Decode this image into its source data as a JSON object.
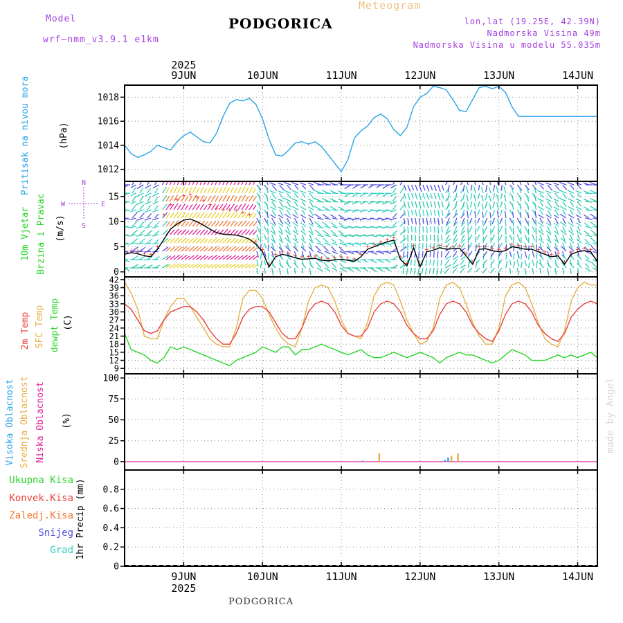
{
  "header": {
    "model_label": "Model",
    "model_name": "wrf–nmm_v3.9.1 e1km",
    "station": "PODGORICA",
    "product": "Meteogram",
    "coords": "lon,lat (19.25E, 42.39N)",
    "elevation": "Nadmorska Visina 49m",
    "model_elevation": "Nadmorska Visina u modelu 55.035m"
  },
  "footer": {
    "station": "PODGORICA",
    "credit": "made by Angel"
  },
  "time_axis": {
    "year": "2025",
    "days": [
      "9JUN",
      "10JUN",
      "11JUN",
      "12JUN",
      "13JUN",
      "14JUN"
    ],
    "day_positions_h": [
      18,
      42,
      66,
      90,
      114,
      138
    ],
    "range_h": [
      0,
      144
    ]
  },
  "colors": {
    "pressure": "#29a3e8",
    "wind_speed": "#000000",
    "t2m": "#e8423c",
    "sfc": "#e8b048",
    "dewpoint": "#2ad42a",
    "cloud_high": "#29a3e8",
    "cloud_mid": "#e8b048",
    "cloud_low": "#e0209a",
    "precip_total": "#2ad42a",
    "precip_conv": "#e8423c",
    "precip_frozen": "#f07830",
    "precip_snow": "#5050e0",
    "precip_grad": "#30d0c0",
    "wind_fast": "#e0209a",
    "wind_mid": "#e8d020",
    "wind_slow": "#30d0c0"
  },
  "chart_data": [
    {
      "type": "line",
      "panel": "pressure",
      "ylabel_main": "Pritisak na nivou mora",
      "ylabel_unit": "(hPa)",
      "ylim": [
        1011,
        1019
      ],
      "yticks": [
        1012,
        1014,
        1016,
        1018
      ],
      "grid": true,
      "series": [
        {
          "name": "Pritisak na nivou mora",
          "x": [
            0,
            2,
            4,
            6,
            8,
            10,
            12,
            14,
            16,
            18,
            20,
            22,
            24,
            26,
            28,
            30,
            32,
            34,
            36,
            38,
            40,
            42,
            44,
            46,
            48,
            50,
            52,
            54,
            56,
            58,
            60,
            62,
            64,
            66,
            68,
            70,
            72,
            74,
            76,
            78,
            80,
            82,
            84,
            86,
            88,
            90,
            92,
            94,
            96,
            98,
            100,
            102,
            104,
            106,
            108,
            110,
            112,
            114,
            116,
            118,
            120,
            122,
            124,
            126,
            128,
            130,
            132,
            134,
            136,
            138,
            140,
            142,
            144
          ],
          "values": [
            1014.0,
            1013.3,
            1013.0,
            1013.2,
            1013.5,
            1014.0,
            1013.8,
            1013.6,
            1014.3,
            1014.8,
            1015.1,
            1014.7,
            1014.3,
            1014.2,
            1015.0,
            1016.4,
            1017.5,
            1017.8,
            1017.7,
            1017.9,
            1017.4,
            1016.2,
            1014.5,
            1013.2,
            1013.1,
            1013.6,
            1014.2,
            1014.3,
            1014.1,
            1014.3,
            1013.9,
            1013.2,
            1012.5,
            1011.8,
            1012.8,
            1014.6,
            1015.2,
            1015.6,
            1016.3,
            1016.6,
            1016.2,
            1015.3,
            1014.8,
            1015.5,
            1017.2,
            1018.0,
            1018.3,
            1018.9,
            1018.8,
            1018.6,
            1017.8,
            1016.9,
            1016.8,
            1017.8,
            1018.8,
            1018.9,
            1018.7,
            1018.9,
            1018.4,
            1017.2,
            1016.4,
            1016.4,
            1016.4,
            1016.4,
            1016.4,
            1016.4,
            1016.4,
            1016.4,
            1016.4,
            1016.4,
            1016.4,
            1016.4,
            1016.4
          ]
        }
      ]
    },
    {
      "type": "line",
      "panel": "wind",
      "ylabel_main": "10m Vjetar",
      "ylabel_sub": "Brzina i Pravac",
      "ylabel_unit": "(m/s)",
      "compass_labels": [
        "N",
        "E",
        "W",
        "S"
      ],
      "ylim": [
        -1,
        18
      ],
      "yticks": [
        0,
        5,
        10,
        15
      ],
      "grid": true,
      "series": [
        {
          "name": "10m Vjetar",
          "x": [
            0,
            2,
            4,
            6,
            8,
            10,
            12,
            14,
            16,
            18,
            20,
            22,
            24,
            26,
            28,
            30,
            32,
            34,
            36,
            38,
            40,
            42,
            44,
            46,
            48,
            50,
            52,
            54,
            56,
            58,
            60,
            62,
            64,
            66,
            68,
            70,
            72,
            74,
            76,
            78,
            80,
            82,
            84,
            86,
            88,
            90,
            92,
            94,
            96,
            98,
            100,
            102,
            104,
            106,
            108,
            110,
            112,
            114,
            116,
            118,
            120,
            122,
            124,
            126,
            128,
            130,
            132,
            134,
            136,
            138,
            140,
            142,
            144
          ],
          "values": [
            3.5,
            3.8,
            3.6,
            3.2,
            3.0,
            4.5,
            6.5,
            8.5,
            9.5,
            10.3,
            10.5,
            10.0,
            9.3,
            8.5,
            7.8,
            7.5,
            7.4,
            7.3,
            7.0,
            6.5,
            5.5,
            4.0,
            1.0,
            3.0,
            3.5,
            3.2,
            2.8,
            2.5,
            2.6,
            2.7,
            2.3,
            2.2,
            2.4,
            2.5,
            2.3,
            2.1,
            3.0,
            4.5,
            5.0,
            5.5,
            6.0,
            6.3,
            2.5,
            1.2,
            4.8,
            1.0,
            4.0,
            4.3,
            4.8,
            4.5,
            4.6,
            4.7,
            3.2,
            1.5,
            4.5,
            4.6,
            4.2,
            4.0,
            4.2,
            5.0,
            4.8,
            4.5,
            4.5,
            4.0,
            3.5,
            3.0,
            3.2,
            1.5,
            3.5,
            4.0,
            4.2,
            4.0,
            2.0
          ]
        }
      ]
    },
    {
      "type": "line",
      "panel": "temperature",
      "ylabel_t2m": "2m Temp",
      "ylabel_sfc": "SFC Temp",
      "ylabel_dew": "dewpt Temp",
      "ylabel_unit": "(C)",
      "ylim": [
        7,
        43
      ],
      "yticks": [
        9,
        12,
        15,
        18,
        21,
        24,
        27,
        30,
        33,
        36,
        39,
        42
      ],
      "grid": true,
      "series": [
        {
          "name": "2m Temp",
          "x": [
            0,
            2,
            4,
            6,
            8,
            10,
            12,
            14,
            16,
            18,
            20,
            22,
            24,
            26,
            28,
            30,
            32,
            34,
            36,
            38,
            40,
            42,
            44,
            46,
            48,
            50,
            52,
            54,
            56,
            58,
            60,
            62,
            64,
            66,
            68,
            70,
            72,
            74,
            76,
            78,
            80,
            82,
            84,
            86,
            88,
            90,
            92,
            94,
            96,
            98,
            100,
            102,
            104,
            106,
            108,
            110,
            112,
            114,
            116,
            118,
            120,
            122,
            124,
            126,
            128,
            130,
            132,
            134,
            136,
            138,
            140,
            142,
            144
          ],
          "values": [
            33,
            31,
            27,
            23,
            22,
            23,
            27,
            30,
            31,
            32,
            32,
            30,
            27,
            23,
            20,
            18,
            18,
            22,
            28,
            31,
            32,
            32,
            30,
            26,
            22,
            20,
            20,
            24,
            30,
            33,
            34,
            33,
            30,
            25,
            22,
            21,
            21,
            24,
            30,
            33,
            34,
            33,
            30,
            25,
            22,
            20,
            20,
            23,
            29,
            33,
            34,
            33,
            30,
            25,
            22,
            20,
            19,
            23,
            29,
            33,
            34,
            33,
            30,
            25,
            22,
            20,
            19,
            22,
            28,
            31,
            33,
            34,
            33
          ]
        },
        {
          "name": "SFC Temp",
          "x": [
            0,
            2,
            4,
            6,
            8,
            10,
            12,
            14,
            16,
            18,
            20,
            22,
            24,
            26,
            28,
            30,
            32,
            34,
            36,
            38,
            40,
            42,
            44,
            46,
            48,
            50,
            52,
            54,
            56,
            58,
            60,
            62,
            64,
            66,
            68,
            70,
            72,
            74,
            76,
            78,
            80,
            82,
            84,
            86,
            88,
            90,
            92,
            94,
            96,
            98,
            100,
            102,
            104,
            106,
            108,
            110,
            112,
            114,
            116,
            118,
            120,
            122,
            124,
            126,
            128,
            130,
            132,
            134,
            136,
            138,
            140,
            142,
            144
          ],
          "values": [
            41,
            37,
            31,
            21,
            20,
            20,
            27,
            32,
            35,
            35,
            32,
            28,
            24,
            20,
            18,
            17,
            17,
            24,
            35,
            38,
            38,
            35,
            29,
            24,
            20,
            18,
            17,
            24,
            34,
            39,
            40,
            39,
            34,
            27,
            22,
            21,
            20,
            26,
            36,
            40,
            41,
            40,
            34,
            27,
            22,
            18,
            19,
            24,
            35,
            40,
            41,
            39,
            33,
            26,
            21,
            18,
            18,
            24,
            36,
            40,
            41,
            39,
            33,
            26,
            20,
            18,
            17,
            23,
            34,
            39,
            41,
            40,
            40
          ]
        },
        {
          "name": "dewpt Temp",
          "x": [
            0,
            2,
            4,
            6,
            8,
            10,
            12,
            14,
            16,
            18,
            20,
            22,
            24,
            26,
            28,
            30,
            32,
            34,
            36,
            38,
            40,
            42,
            44,
            46,
            48,
            50,
            52,
            54,
            56,
            58,
            60,
            62,
            64,
            66,
            68,
            70,
            72,
            74,
            76,
            78,
            80,
            82,
            84,
            86,
            88,
            90,
            92,
            94,
            96,
            98,
            100,
            102,
            104,
            106,
            108,
            110,
            112,
            114,
            116,
            118,
            120,
            122,
            124,
            126,
            128,
            130,
            132,
            134,
            136,
            138,
            140,
            142,
            144
          ],
          "values": [
            22,
            16,
            15,
            14,
            12,
            11,
            13,
            17,
            16,
            17,
            16,
            15,
            14,
            13,
            12,
            11,
            10,
            12,
            13,
            14,
            15,
            17,
            16,
            15,
            17,
            17,
            14,
            16,
            16,
            17,
            18,
            17,
            16,
            15,
            14,
            15,
            16,
            14,
            13,
            13,
            14,
            15,
            14,
            13,
            14,
            15,
            14,
            13,
            11,
            13,
            14,
            15,
            14,
            14,
            13,
            12,
            11,
            12,
            14,
            16,
            15,
            14,
            12,
            12,
            12,
            13,
            14,
            13,
            14,
            13,
            14,
            15,
            13
          ]
        }
      ]
    },
    {
      "type": "bar",
      "panel": "clouds",
      "ylabel_high": "Visoka Oblacnost",
      "ylabel_mid": "Srednja Oblacnost",
      "ylabel_low": "Niska Oblacnost",
      "ylabel_unit": "(%)",
      "ylim": [
        -10,
        105
      ],
      "yticks": [
        0,
        25,
        50,
        75,
        100
      ],
      "grid": true,
      "series": [
        {
          "name": "Visoka Oblacnost",
          "x": [
            72.5,
            97.5,
            98.5
          ],
          "values": [
            1,
            2,
            5
          ]
        },
        {
          "name": "Srednja Oblacnost",
          "x": [
            77.5,
            99.5,
            101.5
          ],
          "values": [
            10,
            7,
            10
          ]
        },
        {
          "name": "Niska Oblacnost",
          "x": [],
          "values": []
        }
      ]
    },
    {
      "type": "bar",
      "panel": "precip",
      "ylabel_total": "Ukupna Kisa",
      "ylabel_conv": "Konvek.Kisa",
      "ylabel_frozen": "Zaledj.Kisa",
      "ylabel_snow": "Snijeg",
      "ylabel_grad": "Grad",
      "ylabel_unit": "1hr Precip (mm)",
      "ylim": [
        0,
        1.0
      ],
      "yticks": [
        "0",
        "0.2",
        "0.4",
        "0.6",
        "0.8"
      ],
      "grid": true,
      "series": [
        {
          "name": "Ukupna Kisa",
          "x": [],
          "values": []
        }
      ]
    }
  ]
}
